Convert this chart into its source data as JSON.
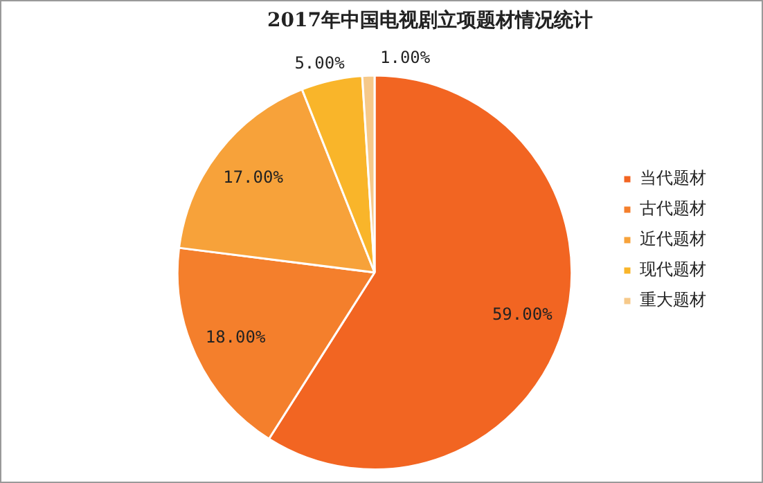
{
  "chart_data": {
    "type": "pie",
    "title": "2017年中国电视剧立项题材情况统计",
    "categories": [
      "当代题材",
      "古代题材",
      "近代题材",
      "现代题材",
      "重大题材"
    ],
    "values": [
      59,
      18,
      17,
      5,
      1
    ],
    "colors": [
      "#f26522",
      "#f47f2c",
      "#f7a23a",
      "#f9b52a",
      "#f6c98a"
    ],
    "value_labels": [
      "59.00%",
      "18.00%",
      "17.00%",
      "5.00%",
      "1.00%"
    ],
    "legend": "right"
  }
}
